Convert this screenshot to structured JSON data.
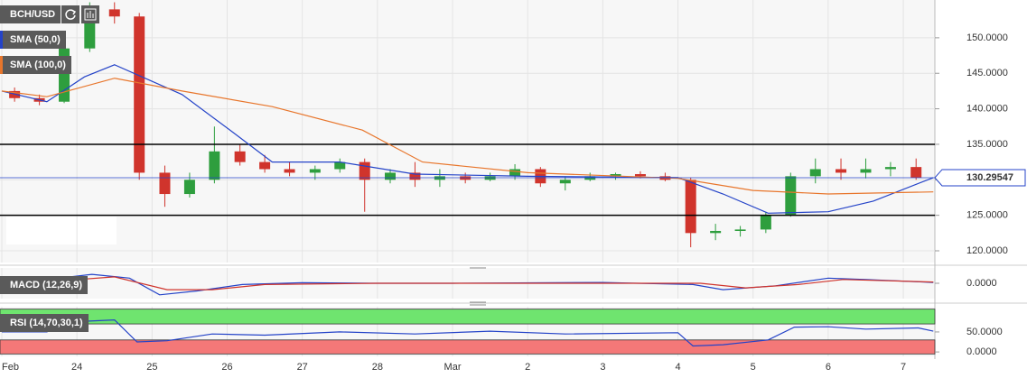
{
  "chart_data": [
    {
      "type": "candlestick",
      "title": "BCH/USD",
      "x": [
        0.17,
        0.5,
        0.83,
        1.17,
        1.5,
        1.83,
        2.17,
        2.5,
        2.83,
        3.17,
        3.5,
        3.83,
        4.17,
        4.5,
        4.83,
        5.17,
        5.5,
        5.83,
        6.17,
        6.5,
        6.83,
        7.17,
        7.5,
        7.83,
        8.17,
        8.5,
        8.83,
        9.17,
        9.5,
        9.83,
        10.17,
        10.5,
        10.83,
        11.17,
        11.5,
        11.83,
        12.17
      ],
      "open": [
        142.5,
        141.5,
        141,
        148.5,
        154,
        153,
        131,
        128,
        130,
        134,
        132.5,
        131.5,
        131,
        131.5,
        132.5,
        130,
        131,
        130,
        130.5,
        130,
        130.5,
        131.5,
        129.5,
        130,
        130.5,
        130.8,
        130.5,
        130,
        122.5,
        122.8,
        123,
        125,
        130.5,
        131.5,
        131,
        131.5,
        131.8
      ],
      "high": [
        143,
        142,
        149,
        155,
        155,
        153.5,
        132,
        131,
        137.5,
        135,
        133.5,
        132.5,
        132,
        133,
        133,
        131.5,
        132.5,
        131.5,
        131,
        131,
        132.2,
        131.8,
        130.5,
        131,
        131,
        131.2,
        131,
        130.3,
        123.8,
        123.5,
        125.5,
        131,
        133,
        133,
        133,
        132.5,
        133
      ],
      "low": [
        141,
        140.5,
        140.8,
        148,
        152,
        130,
        126.2,
        127.5,
        129.5,
        132,
        131,
        130.5,
        130,
        131,
        125.5,
        129.5,
        129,
        129,
        129.5,
        129.8,
        130,
        129,
        128.5,
        129.8,
        130,
        130.2,
        129.8,
        120.5,
        121.5,
        122,
        122.5,
        124.8,
        129.5,
        130,
        130.2,
        130.5,
        130
      ],
      "close": [
        141.5,
        141,
        148.5,
        154,
        153,
        131,
        128,
        130,
        134,
        132.5,
        131.5,
        131,
        131.5,
        132.5,
        130,
        131,
        130,
        130.5,
        130,
        130.5,
        131.5,
        129.5,
        130,
        130.5,
        130.8,
        130.5,
        130,
        122.5,
        122.8,
        123,
        125,
        130.5,
        131.5,
        131,
        131.5,
        131.8,
        130.3
      ],
      "color_up": "#2e9e3e",
      "color_down": "#d0342c",
      "series": [
        {
          "name": "SMA (50,0)",
          "color": "#2443c8",
          "x": [
            0,
            0.6,
            1.1,
            1.5,
            2.4,
            3.1,
            3.6,
            4.5,
            5.5,
            7,
            9,
            9.6,
            10.2,
            11,
            11.6,
            12.4
          ],
          "values": [
            142.5,
            141,
            144.5,
            146.2,
            142,
            136.5,
            132.5,
            132.5,
            130.8,
            130.5,
            130.3,
            128,
            125.3,
            125.5,
            127,
            130.3
          ]
        },
        {
          "name": "SMA (100,0)",
          "color": "#e8762c",
          "x": [
            0,
            0.6,
            1.5,
            2.4,
            3.6,
            4.8,
            5.6,
            7,
            9,
            10,
            11,
            12.4
          ],
          "values": [
            142.5,
            141.7,
            144.3,
            142.5,
            140.3,
            137,
            132.5,
            131,
            130.2,
            128.5,
            128,
            128.3
          ]
        }
      ],
      "hlines": [
        135,
        125
      ],
      "last_price": 130.29547,
      "xlim": [
        0,
        12.42
      ],
      "ylim": [
        118.35,
        155.32
      ],
      "yticks": [
        {
          "value": 120,
          "label": "120.0000"
        },
        {
          "value": 125,
          "label": "125.0000"
        },
        {
          "value": 130,
          "label": "130.0000"
        },
        {
          "value": 135,
          "label": "135.0000"
        },
        {
          "value": 140,
          "label": "140.0000"
        },
        {
          "value": 145,
          "label": "145.0000"
        },
        {
          "value": 150,
          "label": "150.0000"
        }
      ],
      "xticks": [
        {
          "value": 0,
          "label": "Feb"
        },
        {
          "value": 1,
          "label": "24"
        },
        {
          "value": 2,
          "label": "25"
        },
        {
          "value": 3,
          "label": "26"
        },
        {
          "value": 4,
          "label": "27"
        },
        {
          "value": 5,
          "label": "28"
        },
        {
          "value": 6,
          "label": "Mar"
        },
        {
          "value": 7,
          "label": "2"
        },
        {
          "value": 8,
          "label": "3"
        },
        {
          "value": 9,
          "label": "4"
        },
        {
          "value": 10,
          "label": "5"
        },
        {
          "value": 11,
          "label": "6"
        },
        {
          "value": 12,
          "label": "7"
        }
      ],
      "grid": true
    },
    {
      "type": "line",
      "title": "MACD (12,26,9)",
      "series": [
        {
          "color": "#2443c8",
          "x": [
            0,
            0.6,
            1.2,
            1.7,
            2.1,
            2.6,
            3.2,
            4,
            5,
            6,
            8,
            9.2,
            9.6,
            10.3,
            11,
            11.5,
            12.4
          ],
          "values": [
            0,
            1.5,
            3.5,
            2,
            -4.5,
            -3,
            -0.5,
            0.2,
            0,
            0,
            0.3,
            -0.5,
            -2.5,
            -1,
            2,
            1.5,
            0.3
          ]
        },
        {
          "color": "#d0342c",
          "x": [
            0,
            0.8,
            1.5,
            2.2,
            2.8,
            3.5,
            5,
            9.3,
            9.9,
            10.6,
            11.2,
            12.4
          ],
          "values": [
            0,
            1,
            2.5,
            -2.5,
            -2.5,
            -0.5,
            0,
            0,
            -1.8,
            -0.5,
            1.5,
            0.5
          ]
        }
      ],
      "xlim": [
        0,
        12.42
      ],
      "ylim": [
        -6,
        6
      ],
      "yticks": [
        {
          "value": 0,
          "label": "0.0000"
        }
      ]
    },
    {
      "type": "line",
      "title": "RSI (14,70,30,1)",
      "series": [
        {
          "color": "#2443c8",
          "x": [
            0,
            0.6,
            0.9,
            1.5,
            1.8,
            2.2,
            2.8,
            3.5,
            4.5,
            5.5,
            6.5,
            7.5,
            9,
            9.2,
            9.6,
            10.2,
            10.55,
            11,
            11.5,
            12.2,
            12.4
          ],
          "values": [
            50,
            50,
            75,
            80,
            25,
            28,
            45,
            42,
            50,
            45,
            52,
            45,
            48,
            15,
            18,
            30,
            62,
            63,
            57,
            60,
            52
          ]
        }
      ],
      "bands": [
        {
          "from": 70,
          "to": 107,
          "color": "#6fe46f"
        },
        {
          "from": -5,
          "to": 30,
          "color": "#f47878"
        }
      ],
      "xlim": [
        0,
        12.42
      ],
      "ylim": [
        -11,
        113
      ],
      "yticks": [
        {
          "value": 50,
          "label": "50.0000"
        },
        {
          "value": 0,
          "label": "0.0000"
        }
      ]
    }
  ]
}
